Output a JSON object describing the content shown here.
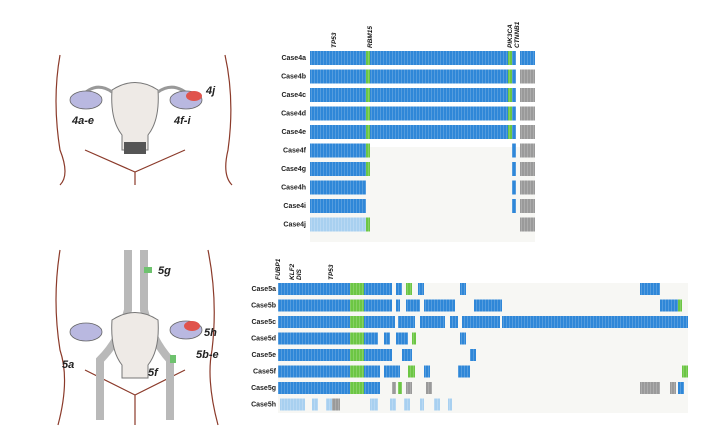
{
  "top_panel": {
    "genes": [
      "TP53",
      "RBM15",
      "PIK3CA",
      "CTNNB1"
    ],
    "cases": [
      "Case4a",
      "Case4b",
      "Case4c",
      "Case4d",
      "Case4e",
      "Case4f",
      "Case4g",
      "Case4h",
      "Case4i",
      "Case4j"
    ],
    "sites": [
      "4a-e",
      "4j",
      "4f-i"
    ]
  },
  "bottom_panel": {
    "genes": [
      "FUBP1",
      "KLF2",
      "DIS",
      "TP53"
    ],
    "cases": [
      "Case5a",
      "Case5b",
      "Case5c",
      "Case5d",
      "Case5e",
      "Case5f",
      "Case5g",
      "Case5h"
    ],
    "sites": [
      "5g",
      "5h",
      "5a",
      "5b-e",
      "5f"
    ]
  }
}
